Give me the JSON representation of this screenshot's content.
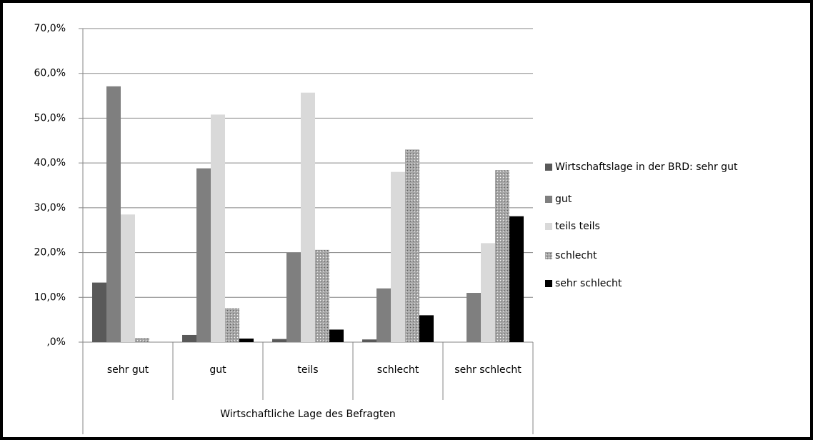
{
  "chart_data": {
    "type": "bar",
    "xlabel": "Wirtschaftliche Lage des Befragten",
    "categories": [
      "sehr gut",
      "gut",
      "teils",
      "schlecht",
      "sehr schlecht"
    ],
    "series": [
      {
        "name": "Wirtschaftslage in der BRD: sehr gut",
        "color": "#595959",
        "values": [
          13.3,
          1.6,
          0.7,
          0.6,
          0
        ]
      },
      {
        "name": "gut",
        "color": "#7f7f7f",
        "values": [
          57.1,
          38.8,
          20.0,
          12.0,
          11.0
        ]
      },
      {
        "name": "teils teils",
        "color": "#d9d9d9",
        "values": [
          28.5,
          50.8,
          55.7,
          38.0,
          22.1
        ]
      },
      {
        "name": "schlecht",
        "color": "#a6a6a6",
        "pattern": "dots",
        "values": [
          0.9,
          7.6,
          20.6,
          43.0,
          38.4
        ]
      },
      {
        "name": "sehr schlecht",
        "color": "#000000",
        "values": [
          0,
          0.8,
          2.8,
          6.0,
          28.1
        ]
      }
    ],
    "ylim": [
      0,
      70
    ],
    "yticks": [
      {
        "value": 0,
        "label": ",0%"
      },
      {
        "value": 10,
        "label": "10,0%"
      },
      {
        "value": 20,
        "label": "20,0%"
      },
      {
        "value": 30,
        "label": "30,0%"
      },
      {
        "value": 40,
        "label": "40,0%"
      },
      {
        "value": 50,
        "label": "50,0%"
      },
      {
        "value": 60,
        "label": "60,0%"
      },
      {
        "value": 70,
        "label": "70,0%"
      }
    ],
    "grid": true,
    "legend": "right"
  }
}
